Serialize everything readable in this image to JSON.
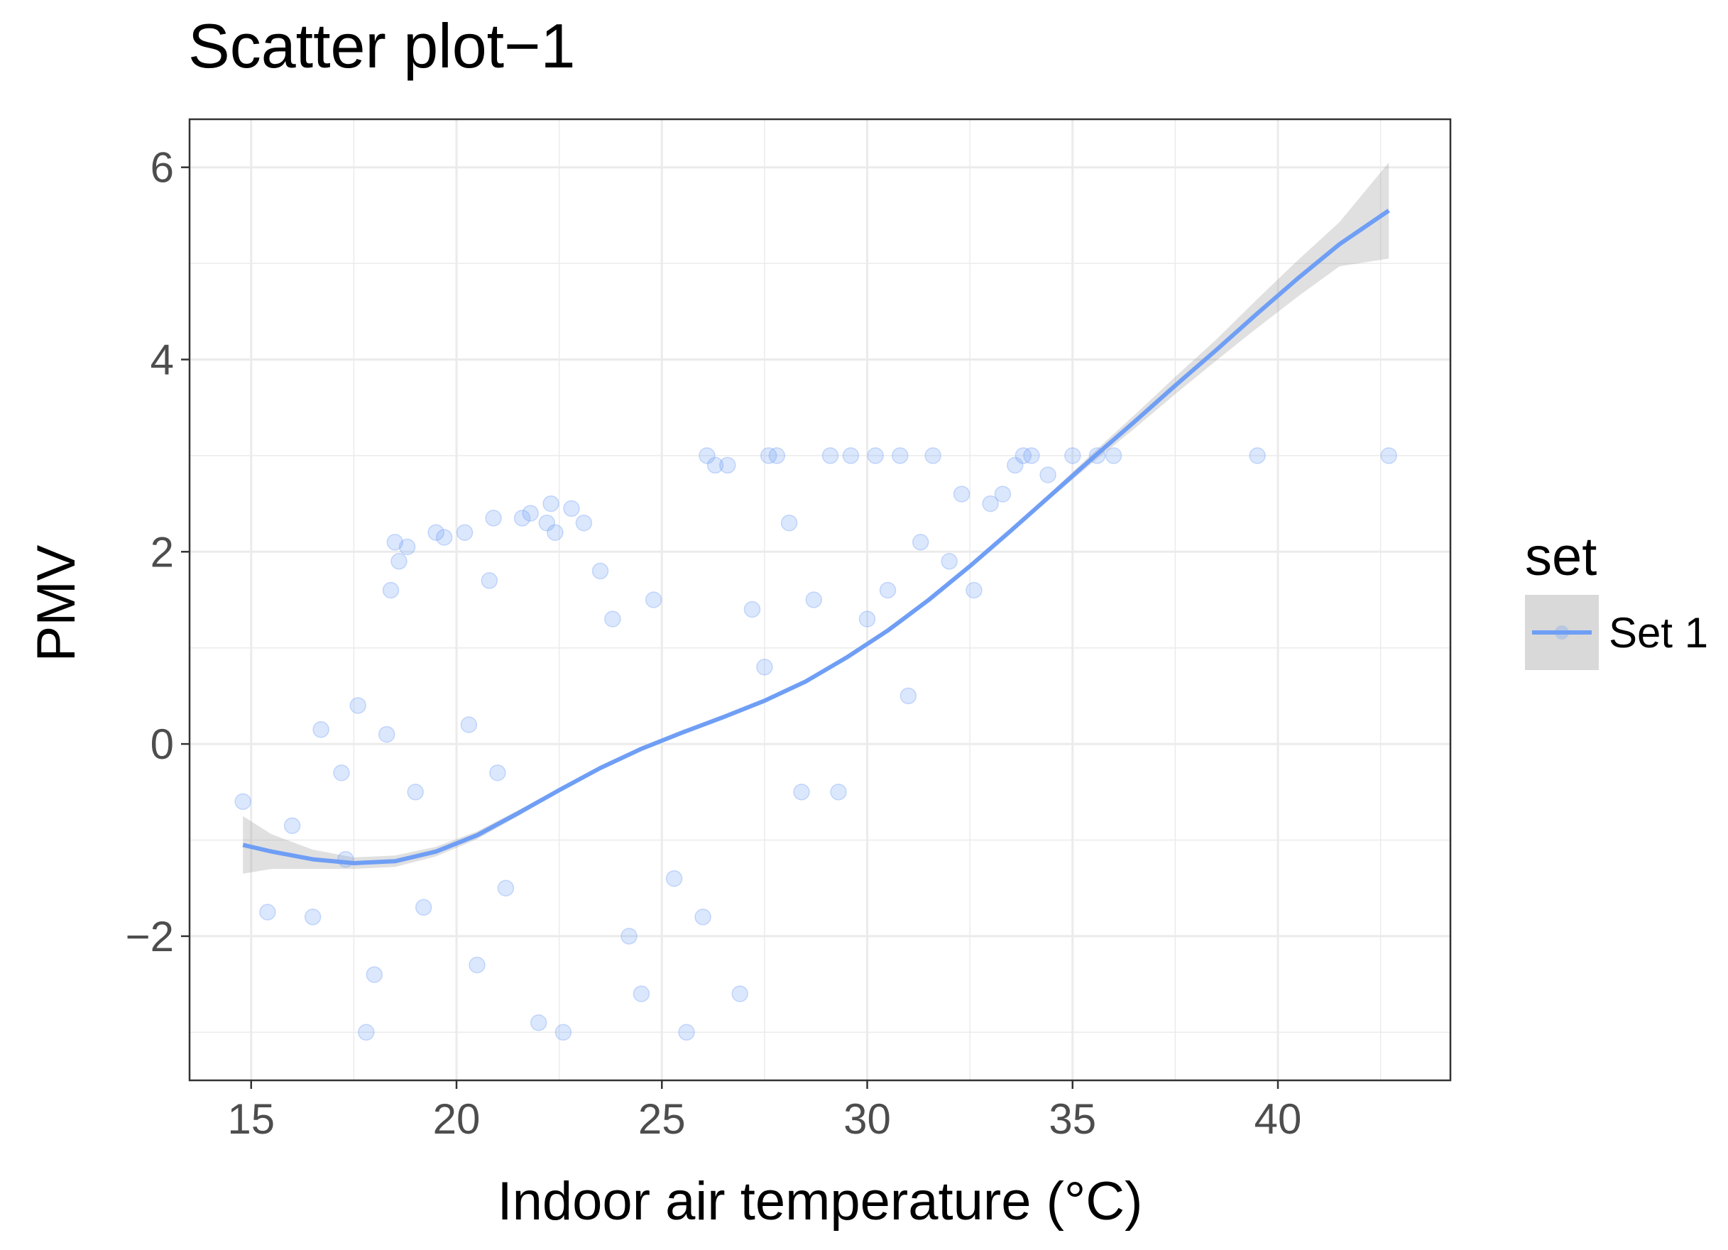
{
  "chart_data": {
    "type": "scatter",
    "title": "Scatter plot−1",
    "xlabel": "Indoor air temperature (°C)",
    "ylabel": "PMV",
    "xlim": [
      13.5,
      44.2
    ],
    "ylim": [
      -3.5,
      6.5
    ],
    "x_ticks": [
      15,
      20,
      25,
      30,
      35,
      40
    ],
    "x_tick_labels": [
      "15",
      "20",
      "25",
      "30",
      "35",
      "40"
    ],
    "y_ticks": [
      -2,
      0,
      2,
      4,
      6
    ],
    "y_tick_labels": [
      "−2",
      "0",
      "2",
      "4",
      "6"
    ],
    "grid": true,
    "legend": {
      "title": "set",
      "position": "right",
      "entries": [
        "Set 1"
      ]
    },
    "series": [
      {
        "name": "Set 1",
        "color": "#6f9ef5",
        "point_alpha": 0.25,
        "points": [
          [
            14.8,
            -0.6
          ],
          [
            15.4,
            -1.75
          ],
          [
            16.0,
            -0.85
          ],
          [
            16.5,
            -1.8
          ],
          [
            16.7,
            0.15
          ],
          [
            17.2,
            -0.3
          ],
          [
            17.3,
            -1.2
          ],
          [
            17.6,
            0.4
          ],
          [
            17.8,
            -3.0
          ],
          [
            18.0,
            -2.4
          ],
          [
            18.3,
            0.1
          ],
          [
            18.4,
            1.6
          ],
          [
            18.5,
            2.1
          ],
          [
            18.6,
            1.9
          ],
          [
            18.8,
            2.05
          ],
          [
            19.0,
            -0.5
          ],
          [
            19.2,
            -1.7
          ],
          [
            19.5,
            2.2
          ],
          [
            19.7,
            2.15
          ],
          [
            20.2,
            2.2
          ],
          [
            20.3,
            0.2
          ],
          [
            20.5,
            -2.3
          ],
          [
            20.8,
            1.7
          ],
          [
            20.9,
            2.35
          ],
          [
            21.0,
            -0.3
          ],
          [
            21.2,
            -1.5
          ],
          [
            21.6,
            2.35
          ],
          [
            21.8,
            2.4
          ],
          [
            22.0,
            -2.9
          ],
          [
            22.2,
            2.3
          ],
          [
            22.3,
            2.5
          ],
          [
            22.4,
            2.2
          ],
          [
            22.6,
            -3.0
          ],
          [
            22.8,
            2.45
          ],
          [
            23.1,
            2.3
          ],
          [
            23.5,
            1.8
          ],
          [
            23.8,
            1.3
          ],
          [
            24.2,
            -2.0
          ],
          [
            24.5,
            -2.6
          ],
          [
            24.8,
            1.5
          ],
          [
            25.3,
            -1.4
          ],
          [
            25.6,
            -3.0
          ],
          [
            26.0,
            -1.8
          ],
          [
            26.1,
            3.0
          ],
          [
            26.3,
            2.9
          ],
          [
            26.6,
            2.9
          ],
          [
            26.9,
            -2.6
          ],
          [
            27.2,
            1.4
          ],
          [
            27.5,
            0.8
          ],
          [
            27.6,
            3.0
          ],
          [
            27.8,
            3.0
          ],
          [
            28.1,
            2.3
          ],
          [
            28.4,
            -0.5
          ],
          [
            28.7,
            1.5
          ],
          [
            29.1,
            3.0
          ],
          [
            29.3,
            -0.5
          ],
          [
            29.6,
            3.0
          ],
          [
            30.0,
            1.3
          ],
          [
            30.2,
            3.0
          ],
          [
            30.5,
            1.6
          ],
          [
            30.8,
            3.0
          ],
          [
            31.0,
            0.5
          ],
          [
            31.3,
            2.1
          ],
          [
            31.6,
            3.0
          ],
          [
            32.0,
            1.9
          ],
          [
            32.3,
            2.6
          ],
          [
            32.6,
            1.6
          ],
          [
            33.0,
            2.5
          ],
          [
            33.3,
            2.6
          ],
          [
            33.6,
            2.9
          ],
          [
            33.8,
            3.0
          ],
          [
            34.0,
            3.0
          ],
          [
            34.4,
            2.8
          ],
          [
            35.0,
            3.0
          ],
          [
            35.6,
            3.0
          ],
          [
            36.0,
            3.0
          ],
          [
            39.5,
            3.0
          ],
          [
            42.7,
            3.0
          ]
        ],
        "fit_line": {
          "x": [
            14.8,
            15.5,
            16.5,
            17.5,
            18.5,
            19.5,
            20.5,
            21.5,
            22.5,
            23.5,
            24.5,
            25.5,
            26.5,
            27.5,
            28.5,
            29.5,
            30.5,
            31.5,
            32.5,
            33.5,
            34.5,
            35.5,
            36.5,
            37.5,
            38.5,
            39.5,
            40.5,
            41.5,
            42.7
          ],
          "y": [
            -1.05,
            -1.12,
            -1.2,
            -1.24,
            -1.22,
            -1.12,
            -0.95,
            -0.72,
            -0.48,
            -0.25,
            -0.05,
            0.12,
            0.28,
            0.45,
            0.65,
            0.9,
            1.18,
            1.5,
            1.85,
            2.22,
            2.6,
            2.98,
            3.35,
            3.73,
            4.1,
            4.48,
            4.85,
            5.2,
            5.55
          ]
        },
        "fit_band": {
          "lower": [
            -1.35,
            -1.3,
            -1.3,
            -1.3,
            -1.28,
            -1.17,
            -0.99,
            -0.75,
            -0.5,
            -0.27,
            -0.07,
            0.1,
            0.26,
            0.43,
            0.63,
            0.88,
            1.16,
            1.48,
            1.83,
            2.2,
            2.57,
            2.93,
            3.28,
            3.64,
            3.99,
            4.33,
            4.66,
            4.97,
            5.05
          ],
          "upper": [
            -0.75,
            -0.94,
            -1.1,
            -1.18,
            -1.16,
            -1.07,
            -0.91,
            -0.69,
            -0.46,
            -0.23,
            -0.03,
            0.14,
            0.3,
            0.47,
            0.67,
            0.92,
            1.2,
            1.52,
            1.87,
            2.24,
            2.63,
            3.03,
            3.42,
            3.82,
            4.21,
            4.63,
            5.04,
            5.43,
            6.05
          ]
        }
      }
    ]
  }
}
